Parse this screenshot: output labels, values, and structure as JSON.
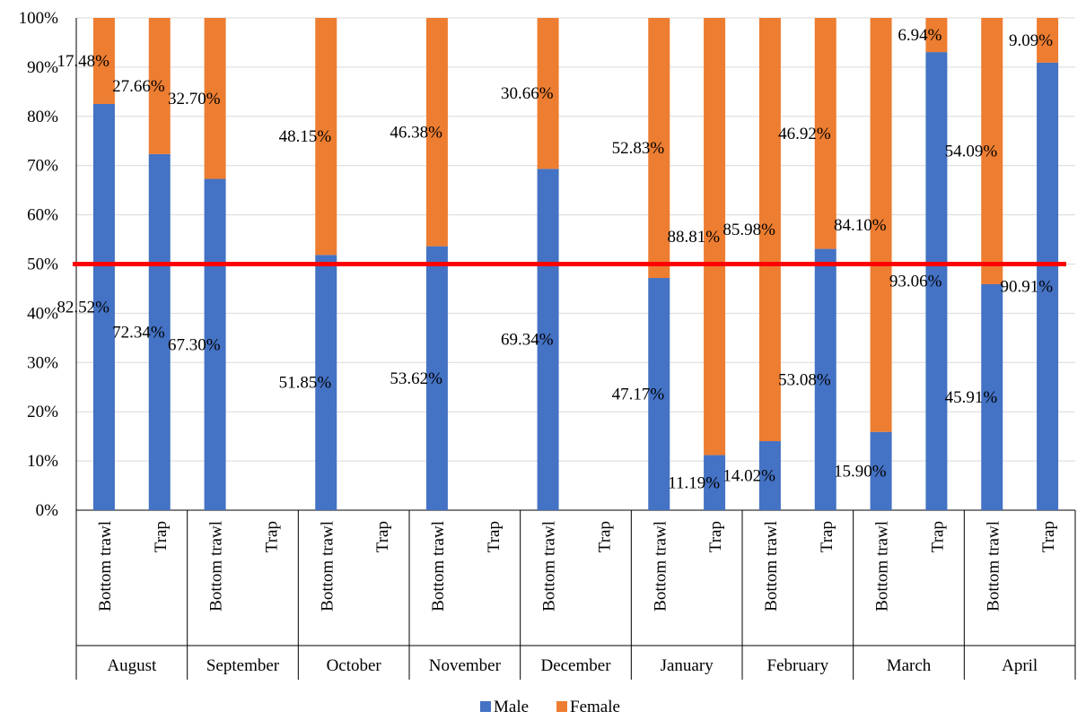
{
  "chart_data": {
    "type": "bar",
    "stacked": true,
    "percent_stacked": true,
    "groups": [
      "August",
      "September",
      "October",
      "November",
      "December",
      "January",
      "February",
      "March",
      "April"
    ],
    "categories": [
      "Bottom trawl",
      "Trap"
    ],
    "series": [
      {
        "name": "Male",
        "color": "#4472C4",
        "values": [
          [
            82.52,
            72.34
          ],
          [
            67.3,
            null
          ],
          [
            51.85,
            null
          ],
          [
            53.62,
            null
          ],
          [
            69.34,
            null
          ],
          [
            47.17,
            11.19
          ],
          [
            14.02,
            53.08
          ],
          [
            15.9,
            93.06
          ],
          [
            45.91,
            90.91
          ]
        ],
        "labels": [
          [
            "82.52%",
            "72.34%"
          ],
          [
            "67.30%",
            null
          ],
          [
            "51.85%",
            null
          ],
          [
            "53.62%",
            null
          ],
          [
            "69.34%",
            null
          ],
          [
            "47.17%",
            "11.19%"
          ],
          [
            "14.02%",
            "53.08%"
          ],
          [
            "15.90%",
            "93.06%"
          ],
          [
            "45.91%",
            "90.91%"
          ]
        ]
      },
      {
        "name": "Female",
        "color": "#ED7D31",
        "values": [
          [
            17.48,
            27.66
          ],
          [
            32.7,
            null
          ],
          [
            48.15,
            null
          ],
          [
            46.38,
            null
          ],
          [
            30.66,
            null
          ],
          [
            52.83,
            88.81
          ],
          [
            85.98,
            46.92
          ],
          [
            84.1,
            6.94
          ],
          [
            54.09,
            9.09
          ]
        ],
        "labels": [
          [
            "17.48%",
            "27.66%"
          ],
          [
            "32.70%",
            null
          ],
          [
            "48.15%",
            null
          ],
          [
            "46.38%",
            null
          ],
          [
            "30.66%",
            null
          ],
          [
            "52.83%",
            "88.81%"
          ],
          [
            "85.98%",
            "46.92%"
          ],
          [
            "84.10%",
            "6.94%"
          ],
          [
            "54.09%",
            "9.09%"
          ]
        ]
      }
    ],
    "y_ticks": [
      "0%",
      "10%",
      "20%",
      "30%",
      "40%",
      "50%",
      "60%",
      "70%",
      "80%",
      "90%",
      "100%"
    ],
    "ylim": [
      0,
      100
    ],
    "reference_line": {
      "value": 50,
      "color": "#FF0000"
    },
    "gridlines": true,
    "gridline_color": "#D9D9D9",
    "legend": {
      "position": "bottom",
      "entries": [
        "Male",
        "Female"
      ]
    }
  }
}
